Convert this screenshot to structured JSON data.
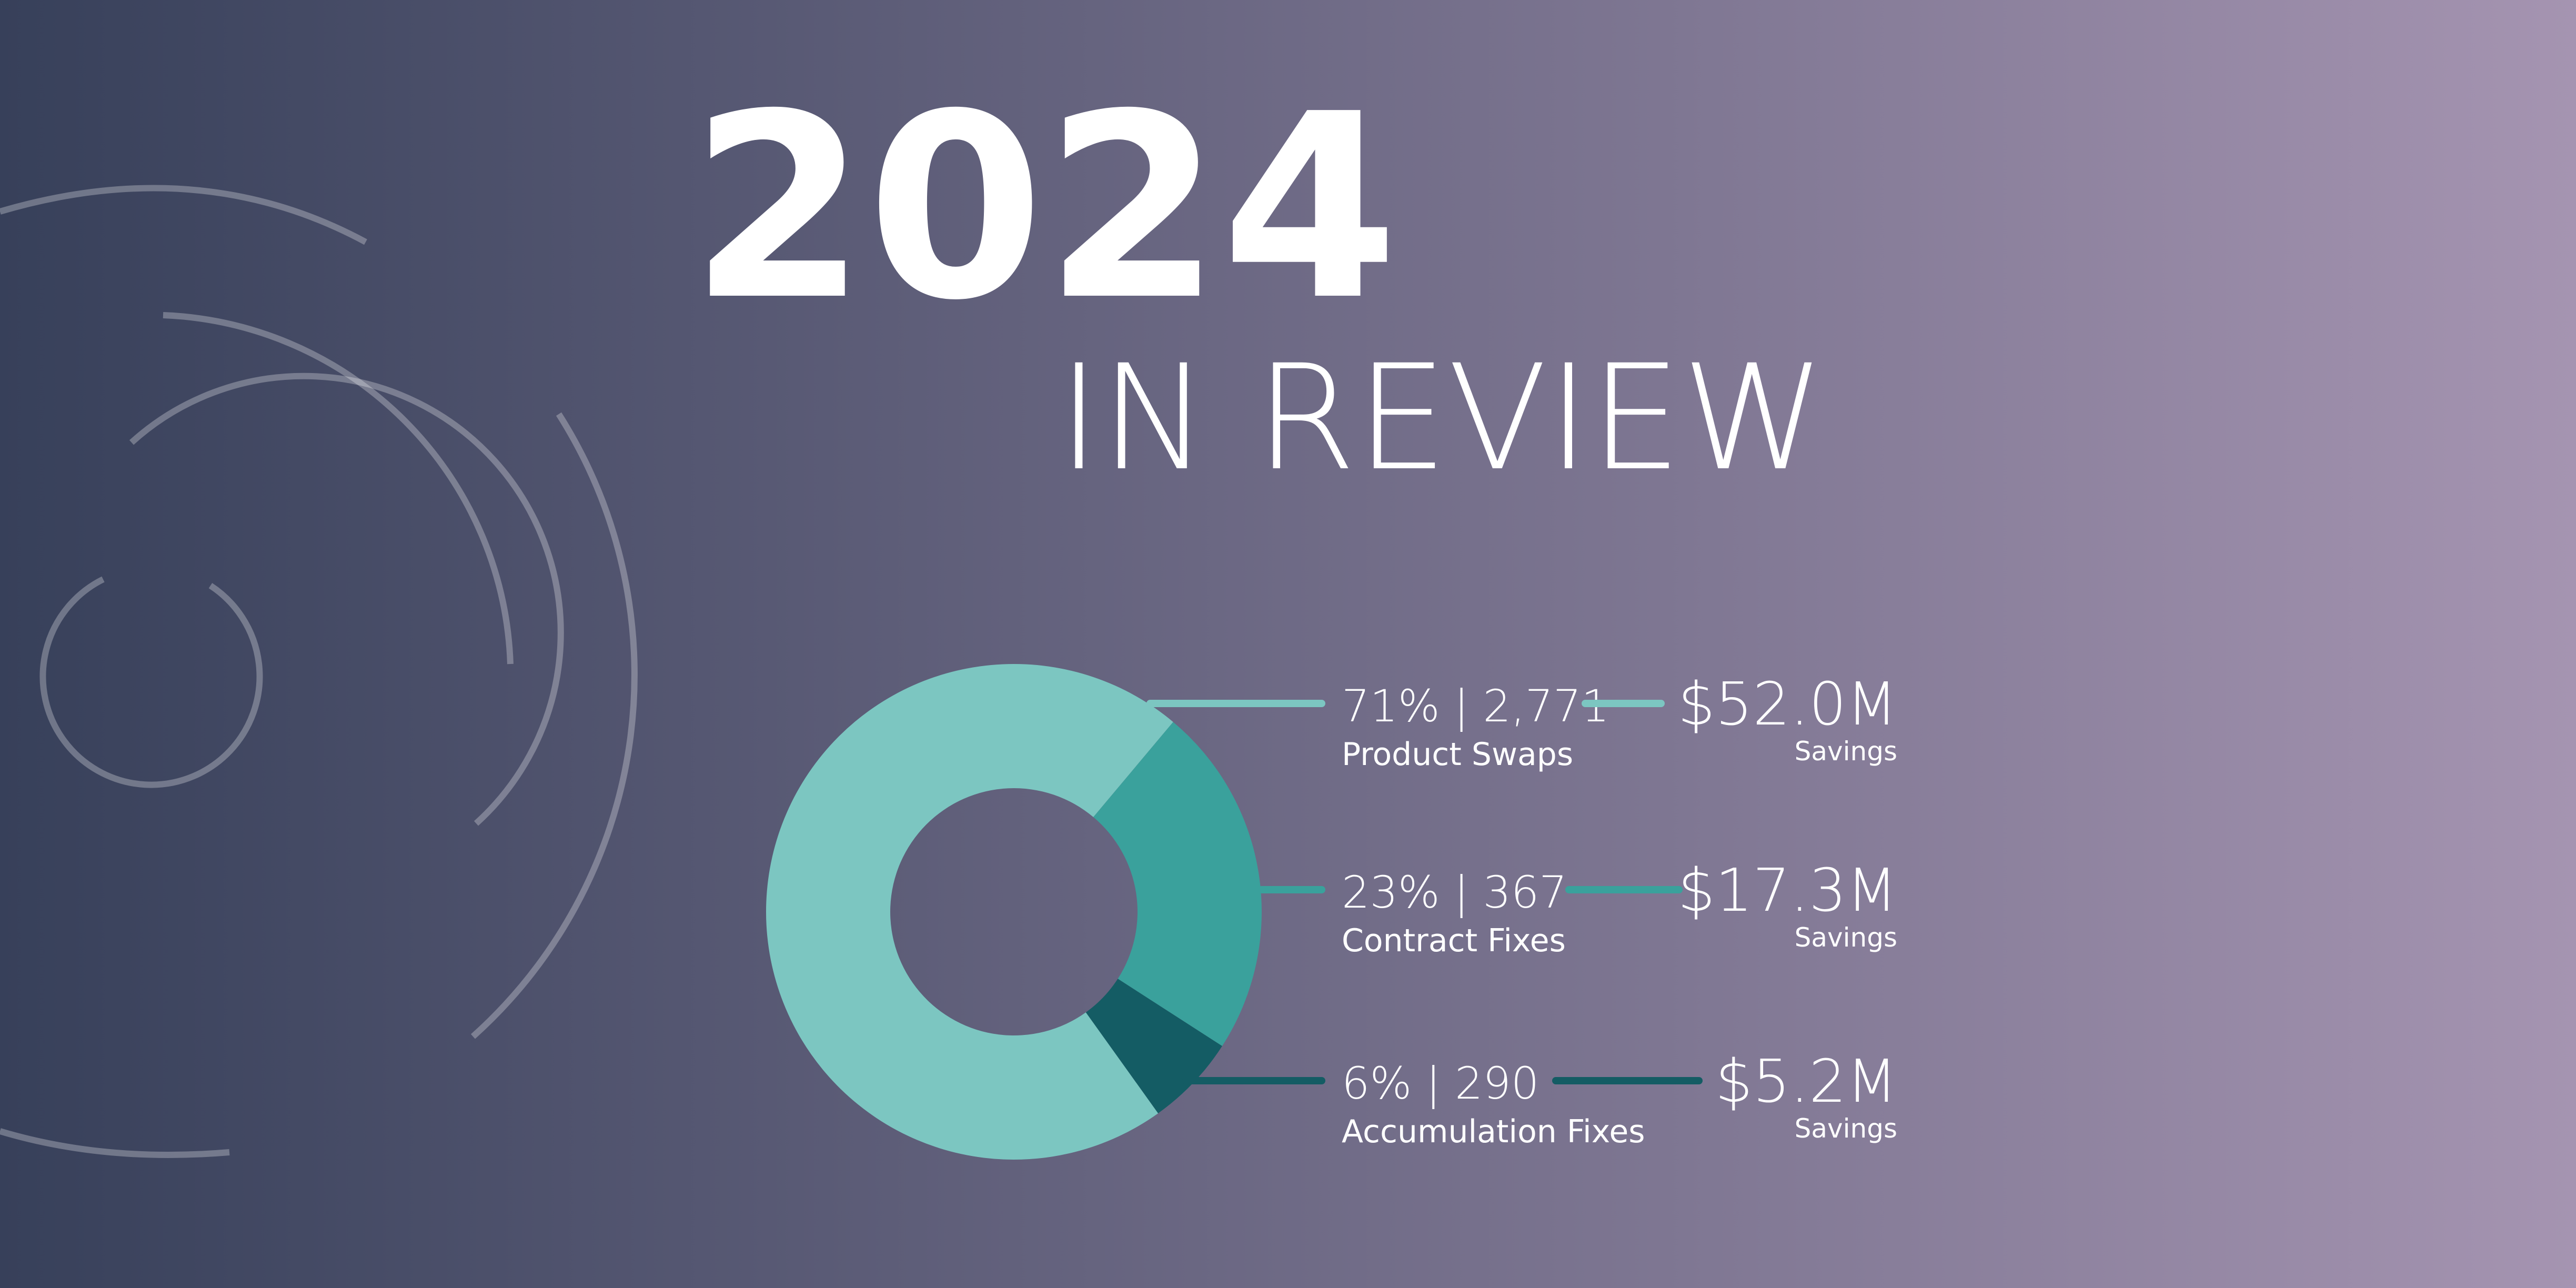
{
  "chart_data": {
    "type": "pie",
    "donut": true,
    "title": "2024",
    "subtitle": "IN REVIEW",
    "categories": [
      "Product Swaps",
      "Contract Fixes",
      "Accumulation Fixes"
    ],
    "values": [
      71,
      23,
      6
    ],
    "value_labels": [
      "71%",
      "23%",
      "6%"
    ],
    "colors": [
      "#7cc6c1",
      "#3aa19c",
      "#145c64"
    ],
    "separator": "|",
    "counts": [
      2771,
      367,
      290
    ],
    "count_labels": [
      "2,771",
      "367",
      "290"
    ],
    "savings": [
      52000000,
      17300000,
      5200000
    ],
    "savings_labels": [
      "$52.0M",
      "$17.3M",
      "$5.2M"
    ],
    "savings_caption": "Savings"
  }
}
